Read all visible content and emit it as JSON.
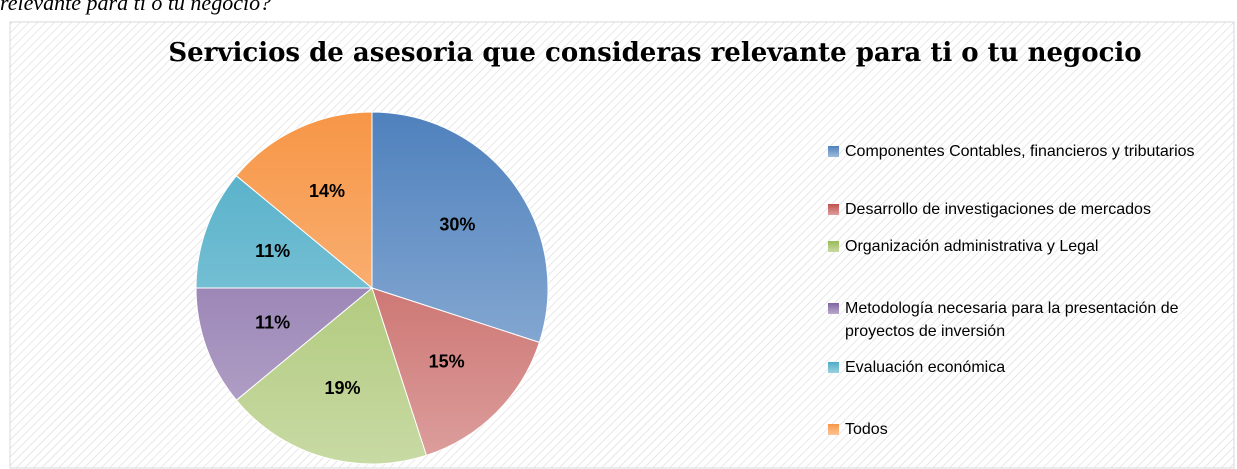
{
  "caption": "relevante para ti o tu negocio?",
  "chart_data": {
    "type": "pie",
    "title": "Servicios de asesoria que consideras relevante para ti o tu negocio",
    "categories": [
      "Componentes Contables, financieros y tributarios",
      "Desarrollo de investigaciones de mercados",
      "Organización administrativa y Legal",
      "Metodología necesaria para la presentación de proyectos de inversión",
      "Evaluación económica",
      "Todos"
    ],
    "values": [
      30,
      15,
      19,
      11,
      11,
      14
    ],
    "value_labels": [
      "30%",
      "15%",
      "19%",
      "11%",
      "11%",
      "14%"
    ],
    "colors": [
      "#4f81bd",
      "#c0504d",
      "#9bbb59",
      "#8064a2",
      "#4bacc6",
      "#f79646"
    ],
    "legend": "right"
  }
}
